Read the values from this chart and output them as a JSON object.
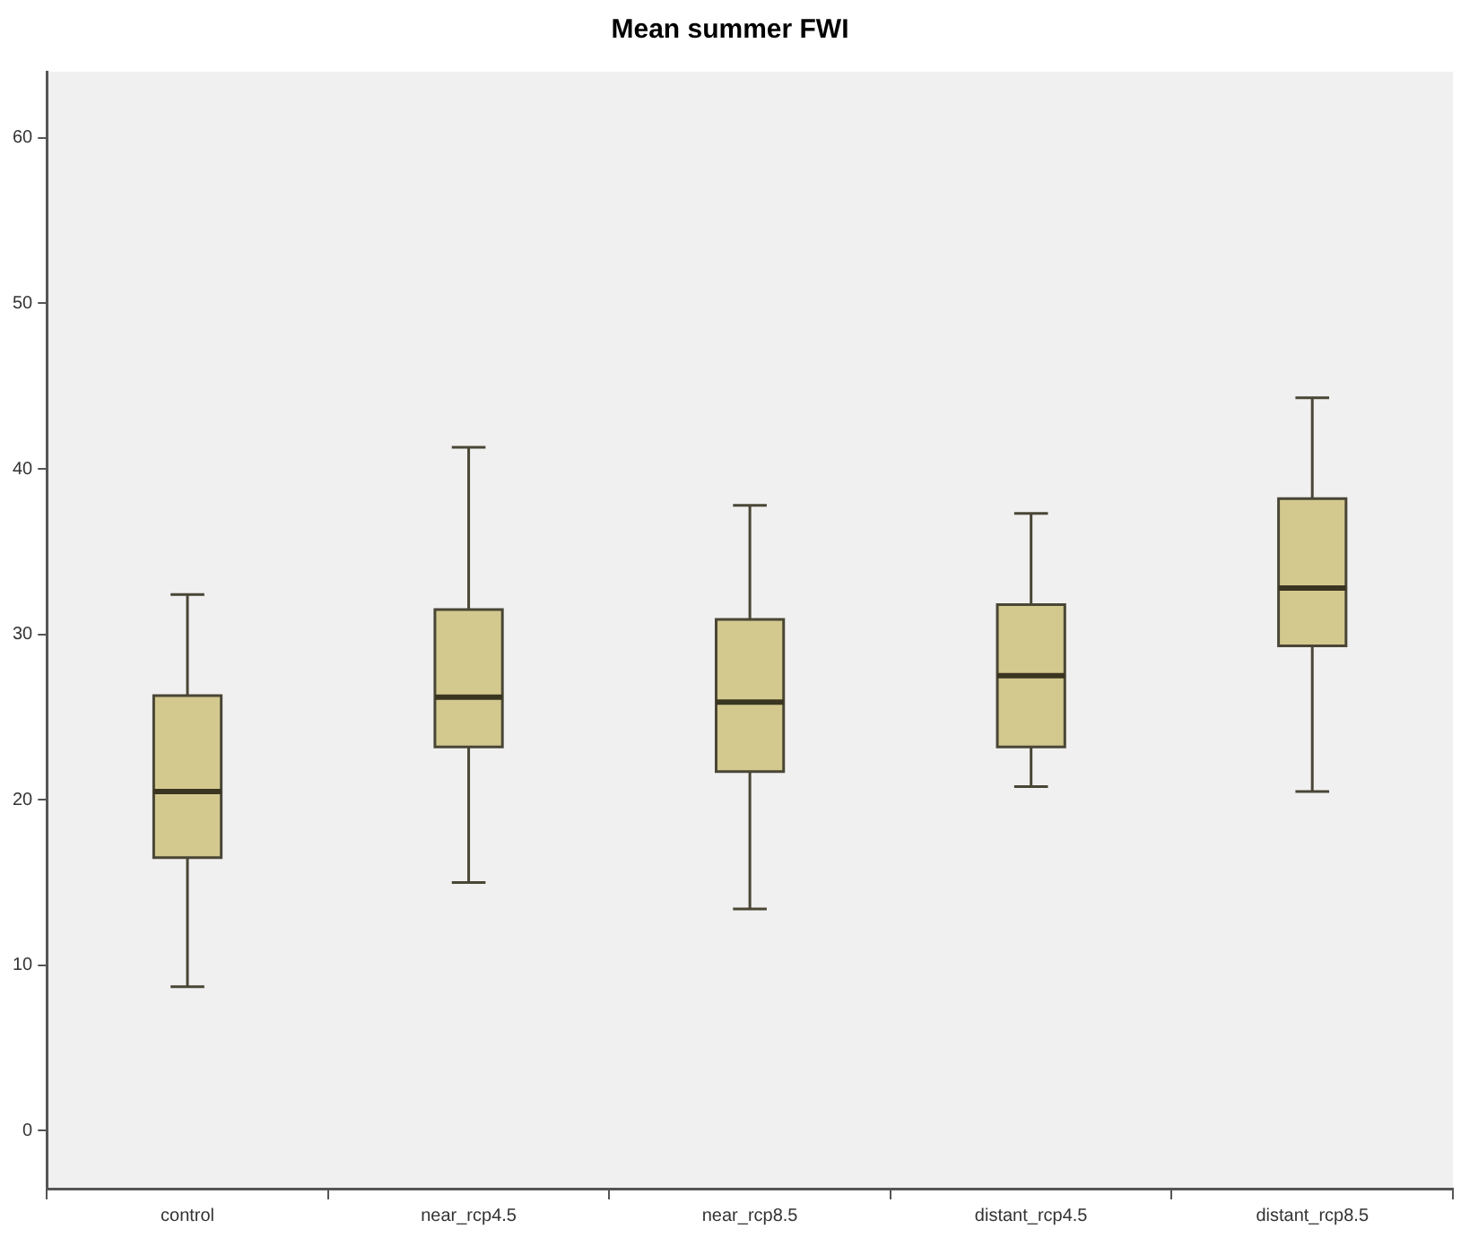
{
  "chart_data": {
    "type": "box",
    "title": "Mean summer FWI",
    "categories": [
      "control",
      "near_rcp4.5",
      "near_rcp8.5",
      "distant_rcp4.5",
      "distant_rcp8.5"
    ],
    "boxes": [
      {
        "low": 8.7,
        "q1": 16.5,
        "median": 20.5,
        "q3": 26.3,
        "high": 32.4
      },
      {
        "low": 15.0,
        "q1": 23.2,
        "median": 26.2,
        "q3": 31.5,
        "high": 41.3
      },
      {
        "low": 13.4,
        "q1": 21.7,
        "median": 25.9,
        "q3": 30.9,
        "high": 37.8
      },
      {
        "low": 20.8,
        "q1": 23.2,
        "median": 27.5,
        "q3": 31.8,
        "high": 37.3
      },
      {
        "low": 20.5,
        "q1": 29.3,
        "median": 32.8,
        "q3": 38.2,
        "high": 44.3
      }
    ],
    "color": "#d3c98f",
    "ylim": [
      -3.5,
      64
    ],
    "yticks": [
      0,
      10,
      20,
      30,
      40,
      50,
      60
    ],
    "grid": false,
    "legend": false
  }
}
